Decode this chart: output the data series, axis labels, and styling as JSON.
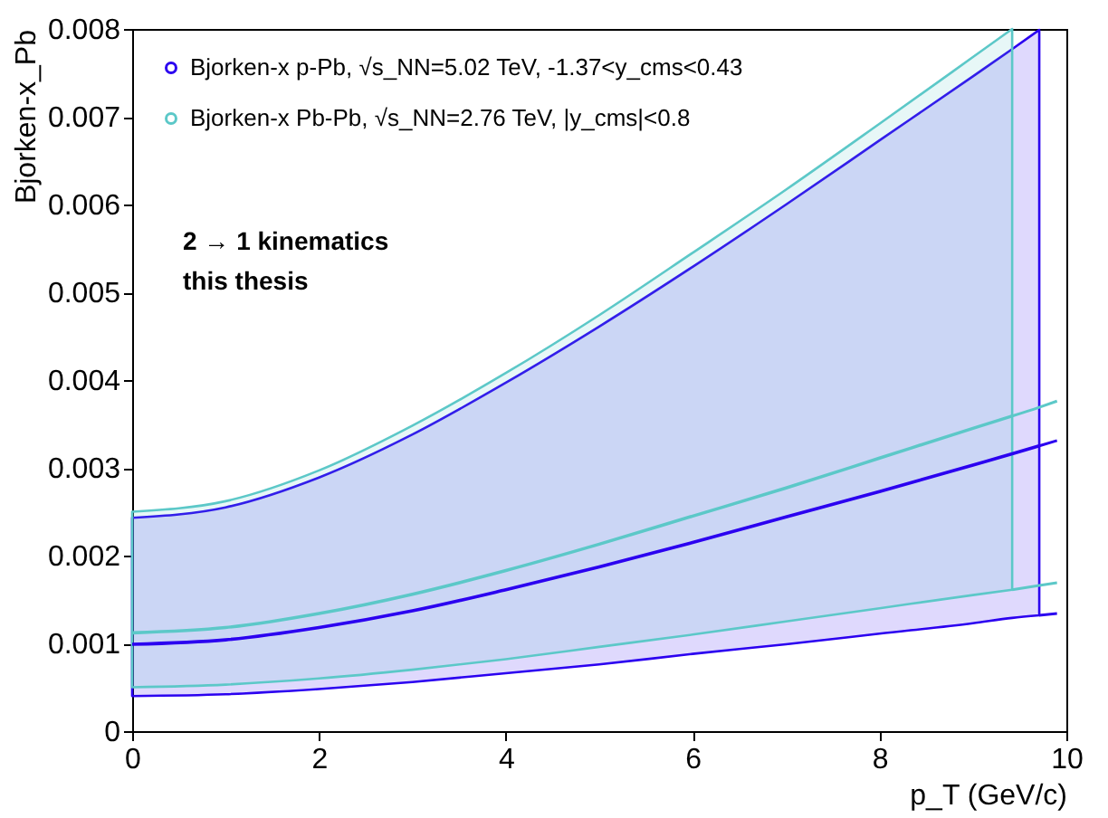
{
  "chart_data": {
    "type": "line",
    "xlabel": "p_T (GeV/c)",
    "ylabel": "Bjorken-x_Pb",
    "xlim": [
      0,
      10
    ],
    "ylim": [
      0,
      0.008
    ],
    "xticks": [
      0,
      2,
      4,
      6,
      8,
      10
    ],
    "yticks": [
      0,
      0.001,
      0.002,
      0.003,
      0.004,
      0.005,
      0.006,
      0.007,
      0.008
    ],
    "grid": false,
    "legend": "top left",
    "marker": "none",
    "line_style": "solid",
    "annotations": [
      "2 → 1 kinematics",
      "this thesis"
    ],
    "series": [
      {
        "name": "Bjorken-x p-Pb, √s_NN=5.02 TeV, -1.37<y_cms<0.43",
        "color": "#2b00f0",
        "x": [
          0,
          1,
          2,
          3,
          4,
          5,
          6,
          7,
          8,
          9,
          9.42,
          9.71
        ],
        "values": [
          0.00099,
          0.00104,
          0.00118,
          0.00137,
          0.00161,
          0.00187,
          0.00215,
          0.00244,
          0.00273,
          0.00303,
          0.00316,
          0.00325
        ],
        "lower": [
          0.0004,
          0.00042,
          0.00048,
          0.00056,
          0.00066,
          0.00076,
          0.00088,
          0.00099,
          0.00111,
          0.00123,
          0.00129,
          0.00132
        ],
        "upper": [
          0.00243,
          0.00255,
          0.00289,
          0.00338,
          0.00397,
          0.00461,
          0.00529,
          0.006,
          0.00673,
          0.00746,
          0.00777,
          0.00799
        ]
      },
      {
        "name": "Bjorken-x Pb-Pb, √s_NN=2.76 TeV, |y_cms|<0.8",
        "color": "#5cc8c8",
        "x": [
          0,
          1,
          2,
          3,
          4,
          5,
          6,
          7,
          8,
          9,
          9.42
        ],
        "values": [
          0.00112,
          0.00118,
          0.00134,
          0.00156,
          0.00183,
          0.00213,
          0.00245,
          0.00277,
          0.00311,
          0.00345,
          0.00359
        ],
        "lower": [
          0.0005,
          0.00053,
          0.0006,
          0.0007,
          0.00082,
          0.00096,
          0.0011,
          0.00125,
          0.0014,
          0.00155,
          0.00161
        ],
        "upper": [
          0.0025,
          0.00262,
          0.00297,
          0.00348,
          0.00408,
          0.00474,
          0.00545,
          0.00617,
          0.00692,
          0.00768,
          0.008
        ]
      },
      {
        "color": "#2b00f0",
        "x": [
          9.71,
          9.9
        ],
        "values": [
          0.00325,
          0.00331
        ]
      },
      {
        "color": "#2b00f0",
        "x": [
          9.71,
          9.9
        ],
        "values": [
          0.00132,
          0.00134
        ]
      },
      {
        "color": "#5cc8c8",
        "x": [
          9.42,
          9.71,
          9.9
        ],
        "values": [
          0.00359,
          0.00369,
          0.00376
        ]
      },
      {
        "color": "#5cc8c8",
        "x": [
          9.42,
          9.71,
          9.9
        ],
        "values": [
          0.00161,
          0.00166,
          0.00169
        ]
      }
    ]
  }
}
